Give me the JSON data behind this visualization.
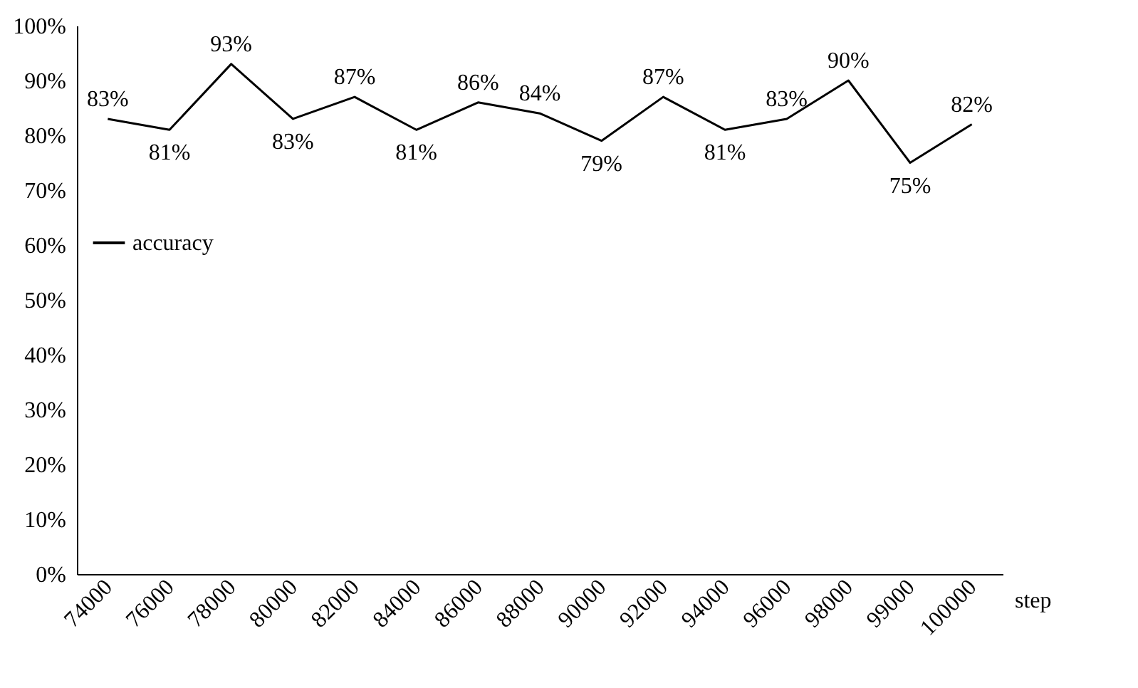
{
  "chart_data": {
    "type": "line",
    "xlabel": "step",
    "categories": [
      "74000",
      "76000",
      "78000",
      "80000",
      "82000",
      "84000",
      "86000",
      "88000",
      "90000",
      "92000",
      "94000",
      "96000",
      "98000",
      "99000",
      "100000"
    ],
    "series": [
      {
        "name": "accuracy",
        "color": "#000000",
        "values": [
          83,
          81,
          93,
          83,
          87,
          81,
          86,
          84,
          79,
          87,
          81,
          83,
          90,
          75,
          82
        ],
        "value_labels": [
          "83%",
          "81%",
          "93%",
          "83%",
          "87%",
          "81%",
          "86%",
          "84%",
          "79%",
          "87%",
          "81%",
          "83%",
          "90%",
          "75%",
          "82%"
        ]
      }
    ],
    "ylim": [
      0,
      100
    ],
    "yticks": [
      {
        "value": 0,
        "label": "0%"
      },
      {
        "value": 10,
        "label": "10%"
      },
      {
        "value": 20,
        "label": "20%"
      },
      {
        "value": 30,
        "label": "30%"
      },
      {
        "value": 40,
        "label": "40%"
      },
      {
        "value": 50,
        "label": "50%"
      },
      {
        "value": 60,
        "label": "60%"
      },
      {
        "value": 70,
        "label": "70%"
      },
      {
        "value": 80,
        "label": "80%"
      },
      {
        "value": 90,
        "label": "90%"
      },
      {
        "value": 100,
        "label": "100%"
      }
    ],
    "grid": false,
    "legend": "top left",
    "marker": "none",
    "line_style": "solid"
  }
}
